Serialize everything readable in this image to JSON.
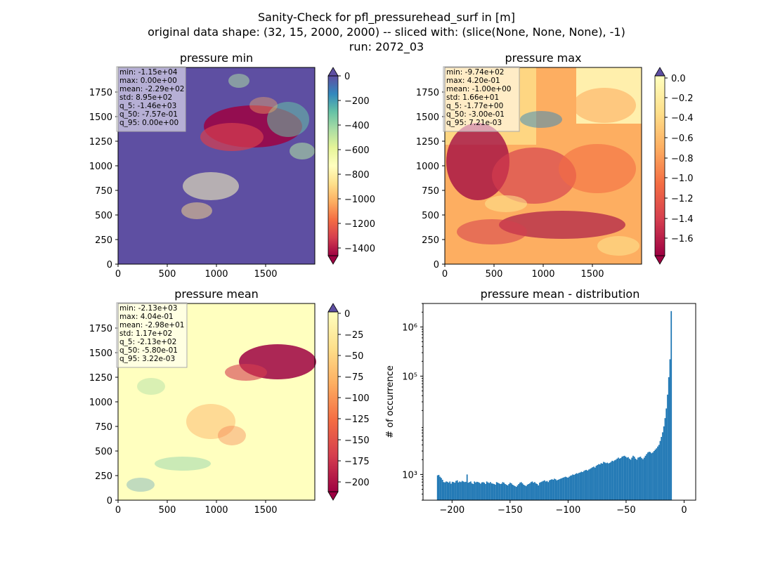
{
  "figure": {
    "suptitle": [
      "Sanity-Check for pfl_pressurehead_surf in [m]",
      "original data shape: (32, 15, 2000, 2000) -- sliced with: (slice(None, None, None), -1)",
      "run: 2072_03"
    ]
  },
  "chart_data": [
    {
      "type": "heatmap",
      "title": "pressure min",
      "colormap": "Spectral",
      "xlim": [
        0,
        2000
      ],
      "ylim": [
        0,
        2000
      ],
      "xticks": [
        "0",
        "500",
        "1000",
        "1500"
      ],
      "yticks": [
        "0",
        "250",
        "500",
        "750",
        "1000",
        "1250",
        "1500",
        "1750"
      ],
      "colorbar": {
        "ticks": [
          "0",
          "−200",
          "−400",
          "−600",
          "−800",
          "−1000",
          "−1200",
          "−1400"
        ],
        "range": [
          -1500,
          0
        ],
        "extend": "both",
        "under_color": "#9e0142",
        "over_color": "#5e4fa2"
      },
      "stats": [
        "min: -1.15e+04",
        "max: 0.00e+00",
        "mean: -2.29e+02",
        "std: 8.95e+02",
        "q_5: -1.46e+03",
        "q_50: -7.57e-01",
        "q_95: 0.00e+00"
      ],
      "background_color": "#5e4fa2"
    },
    {
      "type": "heatmap",
      "title": "pressure max",
      "colormap": "Spectral",
      "xlim": [
        0,
        2000
      ],
      "ylim": [
        0,
        2000
      ],
      "xticks": [
        "0",
        "500",
        "1000",
        "1500"
      ],
      "yticks": [
        "0",
        "250",
        "500",
        "750",
        "1000",
        "1250",
        "1500",
        "1750"
      ],
      "colorbar": {
        "ticks": [
          "0.0",
          "−0.2",
          "−0.4",
          "−0.6",
          "−0.8",
          "−1.0",
          "−1.2",
          "−1.4",
          "−1.6"
        ],
        "range": [
          -1.77,
          0.0
        ],
        "extend": "both",
        "under_color": "#9e0142",
        "over_color": "#5e4fa2"
      },
      "stats": [
        "min: -9.74e+02",
        "max: 4.20e-01",
        "mean: -1.00e+00",
        "std: 1.66e+01",
        "q_5: -1.77e+00",
        "q_50: -3.00e-01",
        "q_95: 7.21e-03"
      ],
      "background_color": "#fdae61"
    },
    {
      "type": "heatmap",
      "title": "pressure mean",
      "colormap": "Spectral",
      "xlim": [
        0,
        2000
      ],
      "ylim": [
        0,
        2000
      ],
      "xticks": [
        "0",
        "500",
        "1000",
        "1500"
      ],
      "yticks": [
        "0",
        "250",
        "500",
        "750",
        "1000",
        "1250",
        "1500",
        "1750"
      ],
      "colorbar": {
        "ticks": [
          "0",
          "−25",
          "−50",
          "−75",
          "−100",
          "−125",
          "−150",
          "−175",
          "−200"
        ],
        "range": [
          -213,
          0
        ],
        "extend": "both",
        "under_color": "#9e0142",
        "over_color": "#5e4fa2"
      },
      "stats": [
        "min: -2.13e+03",
        "max: 4.04e-01",
        "mean: -2.98e+01",
        "std: 1.17e+02",
        "q_5: -2.13e+02",
        "q_50: -5.80e-01",
        "q_95: 3.22e-03"
      ],
      "background_color": "#ffffbf"
    },
    {
      "type": "bar",
      "title": "pressure mean - distribution",
      "ylabel": "# of occurrence",
      "yscale": "log",
      "xlim": [
        -225,
        10
      ],
      "ylim": [
        300,
        3000000
      ],
      "xticks": [
        -200,
        -150,
        -100,
        -50,
        0
      ],
      "xtick_labels": [
        "−200",
        "−150",
        "−100",
        "−50",
        "0"
      ],
      "yticks": [
        1000,
        100000,
        1000000
      ],
      "ytick_labels": [
        "10³",
        "10⁵",
        "10⁶"
      ],
      "bar_color": "#1f77b4",
      "bins": {
        "start": -213,
        "width": 1.06,
        "counts": [
          960,
          980,
          900,
          850,
          780,
          700,
          690,
          720,
          710,
          680,
          720,
          650,
          710,
          700,
          680,
          740,
          760,
          690,
          720,
          700,
          740,
          720,
          700,
          710,
          1000,
          680,
          700,
          720,
          660,
          640,
          720,
          690,
          710,
          700,
          680,
          650,
          690,
          700,
          680,
          640,
          720,
          690,
          670,
          700,
          660,
          650,
          640,
          620,
          700,
          680,
          660,
          640,
          650,
          700,
          680,
          640,
          620,
          600,
          640,
          680,
          660,
          620,
          600,
          580,
          560,
          600,
          640,
          680,
          700,
          660,
          620,
          600,
          580,
          620,
          640,
          660,
          700,
          720,
          680,
          700,
          660,
          640,
          600,
          680,
          700,
          720,
          740,
          760,
          720,
          740,
          700,
          760,
          780,
          800,
          780,
          820,
          800,
          760,
          780,
          800,
          820,
          840,
          860,
          880,
          900,
          880,
          860,
          900,
          940,
          960,
          1000,
          980,
          1020,
          1060,
          1040,
          1080,
          1100,
          1140,
          1120,
          1180,
          1220,
          1240,
          1200,
          1260,
          1300,
          1350,
          1400,
          1440,
          1380,
          1500,
          1560,
          1620,
          1600,
          1700,
          1660,
          1800,
          1760,
          1700,
          1740,
          1680,
          1720,
          1800,
          1900,
          1860,
          1940,
          2000,
          2100,
          2200,
          2100,
          2160,
          2300,
          2360,
          2400,
          2300,
          2200,
          2250,
          2100,
          2000,
          2200,
          2400,
          2300,
          2100,
          2000,
          2200,
          2250,
          2300,
          2150,
          2050,
          2200,
          2400,
          2600,
          2800,
          2900,
          2850,
          2700,
          2800,
          3000,
          3200,
          3400,
          3700,
          4000,
          4800,
          5800,
          7200,
          9500,
          14000,
          22000,
          42000,
          95000,
          220000,
          2100000
        ]
      }
    }
  ]
}
